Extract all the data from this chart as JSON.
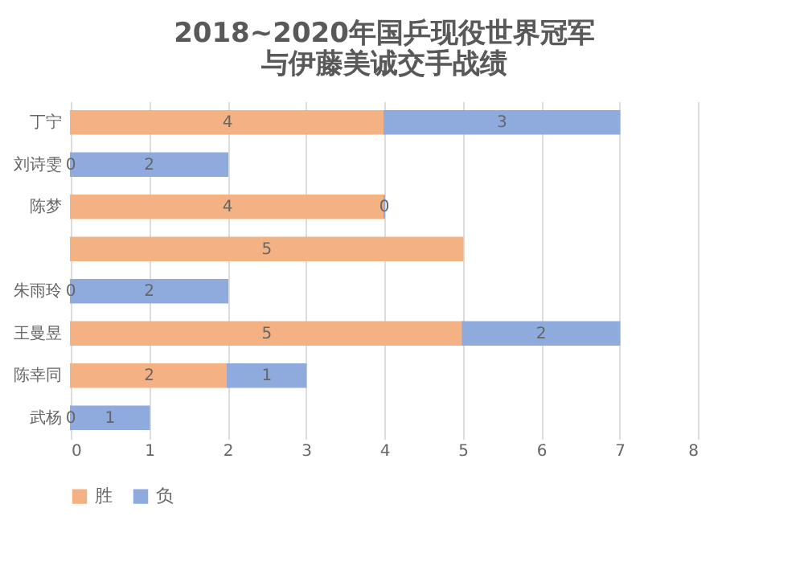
{
  "chart_data": {
    "type": "bar",
    "orientation": "horizontal",
    "stacked": true,
    "title": "2018~2020年国乒现役世界冠军与伊藤美诚交手战绩",
    "categories": [
      "丁宁",
      "刘诗雯",
      "陈梦",
      null,
      "朱雨玲",
      "王曼昱",
      "陈幸同",
      "武杨"
    ],
    "series": [
      {
        "name": "胜",
        "color": "#f4b183",
        "values": [
          4,
          0,
          4,
          5,
          0,
          5,
          2,
          0
        ],
        "value_labels": [
          "4",
          "0",
          "4",
          "5",
          "0",
          "5",
          "2",
          "0"
        ]
      },
      {
        "name": "负",
        "color": "#8faadc",
        "values": [
          3,
          2,
          0,
          null,
          2,
          2,
          1,
          1
        ],
        "value_labels": [
          "3",
          "2",
          "0",
          null,
          "2",
          "2",
          "1",
          "1"
        ]
      }
    ],
    "xlim": [
      0,
      8
    ],
    "xticks": [
      0,
      1,
      2,
      3,
      4,
      5,
      6,
      7,
      8
    ],
    "grid": "x",
    "legend": "bottom"
  }
}
